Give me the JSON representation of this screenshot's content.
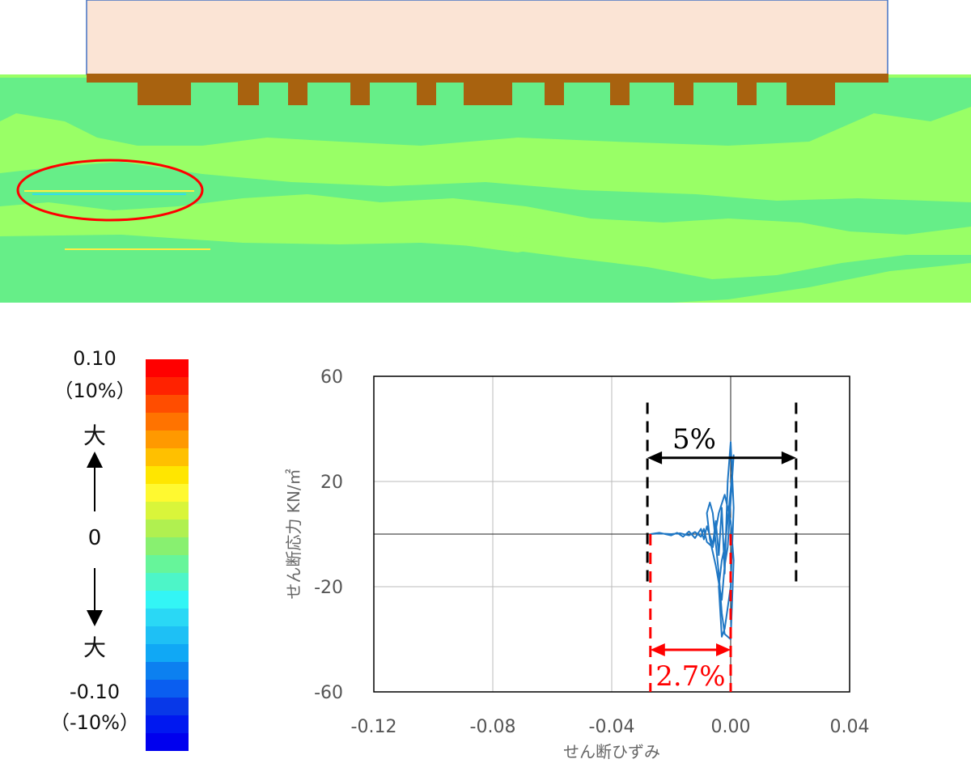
{
  "legend": {
    "max_value": "0.10",
    "max_percent": "（10%）",
    "upper_large": "大",
    "zero": "0",
    "lower_large": "大",
    "min_value": "-0.10",
    "min_percent": "（-10%）",
    "colors": [
      "#ff0000",
      "#ff2200",
      "#ff4d00",
      "#ff7300",
      "#ff9900",
      "#ffc000",
      "#ffe600",
      "#fff930",
      "#d9f53a",
      "#b0f050",
      "#88f070",
      "#66f59a",
      "#4df5c8",
      "#33f5f5",
      "#2ad8f5",
      "#1ec0f5",
      "#10a8f5",
      "#0c80f0",
      "#0a5ef0",
      "#0838e8",
      "#0018f0",
      "#0000ee"
    ]
  },
  "contour": {
    "colors": {
      "background": "#99ff66",
      "band": "#66ee88",
      "structure": "#a8620f",
      "building": "#fbe4d5",
      "highlight": "#ff0000"
    }
  },
  "chart_data": {
    "type": "line",
    "xlabel": "せん断ひずみ",
    "ylabel": "せん断応力 KN/㎡",
    "xlim": [
      -0.12,
      0.04
    ],
    "ylim": [
      -60,
      60
    ],
    "xticks": [
      "-0.12",
      "-0.08",
      "-0.04",
      "0.00",
      "0.04"
    ],
    "yticks": [
      "60",
      "20",
      "-20",
      "-60"
    ],
    "grid": true,
    "series_color": "#1f77c4",
    "series": [
      {
        "x": [
          -0.027,
          -0.024,
          -0.02,
          -0.018,
          -0.016,
          -0.014,
          -0.012,
          -0.01,
          -0.009,
          -0.008,
          -0.006,
          -0.005,
          -0.004,
          -0.003,
          -0.002,
          -0.001,
          0.0,
          0.001,
          0.0,
          -0.001,
          -0.002,
          -0.003,
          -0.004,
          -0.003,
          -0.002,
          -0.001,
          0.0,
          0.001,
          -0.001,
          -0.002,
          -0.003,
          -0.005,
          -0.007,
          -0.008,
          -0.007,
          -0.006,
          -0.004,
          -0.003,
          -0.002,
          0.0,
          0.001,
          0.0,
          -0.002,
          -0.004,
          -0.006,
          -0.008,
          -0.009,
          -0.01,
          -0.012,
          -0.014,
          -0.017,
          -0.02,
          -0.024,
          -0.027
        ],
        "y": [
          0,
          0.5,
          -0.5,
          0.5,
          -1,
          1,
          -1.5,
          2,
          -2,
          3,
          -4,
          5,
          -8,
          10,
          -15,
          20,
          35,
          10,
          -20,
          -28,
          -36,
          -39,
          -20,
          -10,
          -5,
          5,
          17,
          30,
          -5,
          -12,
          -25,
          -12,
          -2,
          8,
          12,
          8,
          -15,
          -30,
          -38,
          -40,
          -10,
          5,
          15,
          8,
          -5,
          -3,
          2,
          -1,
          0.8,
          -0.5,
          0.3,
          0,
          0.2,
          0
        ]
      }
    ],
    "annotations": [
      {
        "text": "5%",
        "x_from": -0.028,
        "x_to": 0.022,
        "y": 29,
        "color": "#000000"
      },
      {
        "text": "2.7%",
        "x_from": -0.027,
        "x_to": 0.0,
        "y": -44,
        "color": "#ff0000"
      }
    ]
  }
}
